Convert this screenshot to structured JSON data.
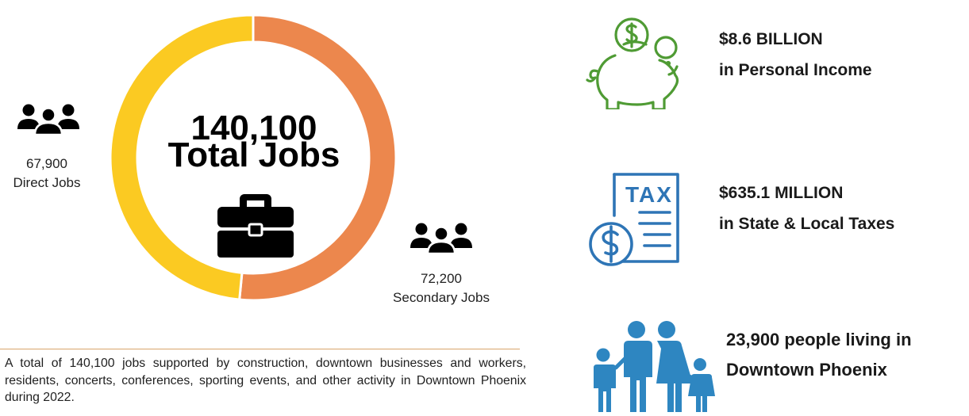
{
  "colors": {
    "direct": "#fbca22",
    "secondary": "#ec874d",
    "piggy": "#4f9b34",
    "tax": "#2e75b6",
    "family": "#2e86c1"
  },
  "chart_data": {
    "type": "pie",
    "variant": "donut",
    "title": "140,100",
    "subtitle": "Total Jobs",
    "slices": [
      {
        "label": "Direct Jobs",
        "value": 67900
      },
      {
        "label": "Secondary Jobs",
        "value": 72200
      }
    ],
    "legend": "labels beside slices"
  },
  "labels": {
    "direct_value": "67,900",
    "direct_name": "Direct Jobs",
    "secondary_value": "72,200",
    "secondary_name": "Secondary Jobs"
  },
  "icons": {
    "people": "people-group-icon",
    "briefcase": "briefcase-icon",
    "piggy": "piggy-bank-icon",
    "tax": "tax-document-icon",
    "family": "family-icon"
  },
  "stats": {
    "income_value": "$8.6 BILLION",
    "income_label": "in Personal Income",
    "tax_word": "TAX",
    "taxes_value": "$635.1 MILLION",
    "taxes_label": "in State & Local Taxes",
    "residents_value": "23,900 people living in",
    "residents_label": "Downtown Phoenix"
  },
  "caption": "A total of 140,100 jobs supported by construction, downtown businesses and workers, residents, concerts, conferences, sporting events, and other activity in Downtown Phoenix during 2022."
}
